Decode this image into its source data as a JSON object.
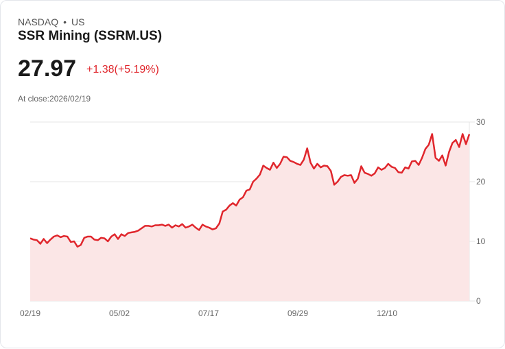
{
  "header": {
    "exchange": "NASDAQ",
    "separator": "•",
    "market": "US",
    "title": "SSR Mining (SSRM.US)",
    "price": "27.97",
    "change": "+1.38(+5.19%)",
    "close_label": "At close:2026/02/19"
  },
  "colors": {
    "line": "#e0262c",
    "fill": "#fbe6e6",
    "grid": "#e6e6e6",
    "change": "#e0262c"
  },
  "chart_data": {
    "type": "area",
    "title": "",
    "xlabel": "",
    "ylabel": "",
    "ylim": [
      0,
      30
    ],
    "yticks": [
      "0",
      "10",
      "20",
      "30"
    ],
    "xticks": [
      "02/19",
      "05/02",
      "07/17",
      "09/29",
      "12/10"
    ],
    "grid": "horizontal",
    "values": [
      10.5,
      10.3,
      10.2,
      9.6,
      10.4,
      9.7,
      10.3,
      10.8,
      11.0,
      10.7,
      10.9,
      10.8,
      9.9,
      10.0,
      9.1,
      9.4,
      10.6,
      10.8,
      10.8,
      10.3,
      10.2,
      10.6,
      10.5,
      10.0,
      10.8,
      11.2,
      10.4,
      11.2,
      10.9,
      11.4,
      11.5,
      11.6,
      11.8,
      12.2,
      12.6,
      12.6,
      12.5,
      12.7,
      12.7,
      12.8,
      12.6,
      12.8,
      12.3,
      12.7,
      12.5,
      12.9,
      12.3,
      12.5,
      12.8,
      12.3,
      11.9,
      12.8,
      12.5,
      12.3,
      12.0,
      12.2,
      13.0,
      15.0,
      15.3,
      16.0,
      16.4,
      16.0,
      17.0,
      17.4,
      18.5,
      18.7,
      20.0,
      20.5,
      21.2,
      22.7,
      22.3,
      22.0,
      23.2,
      22.3,
      23.0,
      24.2,
      24.1,
      23.5,
      23.3,
      23.0,
      22.8,
      23.7,
      25.6,
      23.2,
      22.2,
      23.0,
      22.4,
      22.7,
      22.6,
      21.8,
      19.5,
      20.0,
      20.8,
      21.1,
      21.0,
      21.1,
      19.8,
      20.5,
      22.6,
      21.5,
      21.3,
      21.0,
      21.4,
      22.4,
      22.0,
      22.3,
      23.0,
      22.5,
      22.3,
      21.6,
      21.5,
      22.4,
      22.2,
      23.4,
      23.5,
      22.8,
      24.0,
      25.5,
      26.2,
      28.0,
      24.0,
      23.5,
      24.4,
      22.7,
      25.0,
      26.5,
      27.0,
      25.8,
      28.0,
      26.3,
      27.97
    ]
  }
}
